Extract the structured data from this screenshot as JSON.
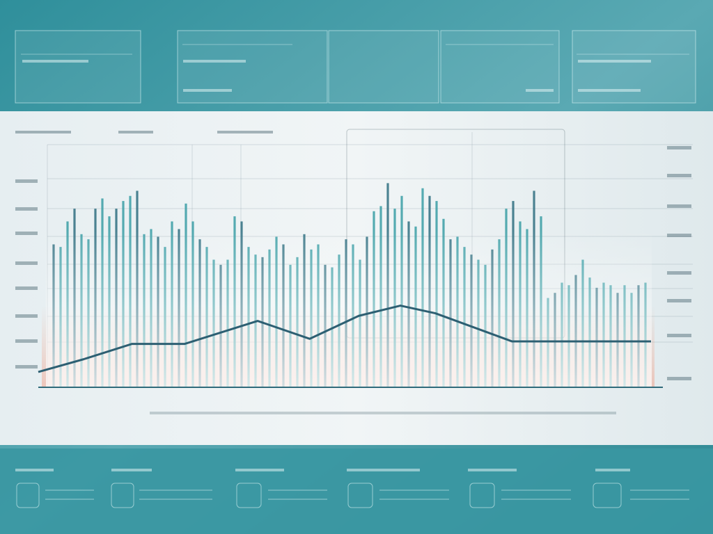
{
  "chart_data": [
    {
      "type": "bar",
      "color": "#3a9ea4",
      "ylim": [
        0,
        100
      ],
      "values": [
        56,
        55,
        65,
        70,
        60,
        58,
        70,
        74,
        67,
        70,
        73,
        75,
        77,
        60,
        62,
        59,
        55,
        65,
        62,
        72,
        65,
        58,
        55,
        50,
        48,
        50,
        67,
        65,
        55,
        52,
        51,
        54,
        59,
        56,
        48,
        51,
        60,
        54,
        56,
        48,
        47,
        52,
        58,
        56,
        50,
        59,
        69,
        71,
        80,
        70,
        75,
        65,
        63,
        78,
        75,
        73,
        66,
        58,
        59,
        55,
        52,
        50,
        48,
        54,
        58,
        70,
        73,
        65,
        62,
        77,
        67,
        35,
        37,
        41,
        40,
        44,
        50,
        43,
        39,
        41,
        40,
        37,
        40,
        37,
        40,
        41
      ]
    },
    {
      "type": "line",
      "color": "#2d5f72",
      "ylim": [
        0,
        100
      ],
      "xlim": [
        0,
        100
      ],
      "x": [
        0,
        7.4,
        15.3,
        23.9,
        35.8,
        44.3,
        52.3,
        59.1,
        64.8,
        77.3,
        88.1,
        100
      ],
      "values": [
        6,
        11,
        17,
        17,
        26,
        19,
        28,
        32,
        29,
        18,
        18,
        18
      ]
    }
  ]
}
